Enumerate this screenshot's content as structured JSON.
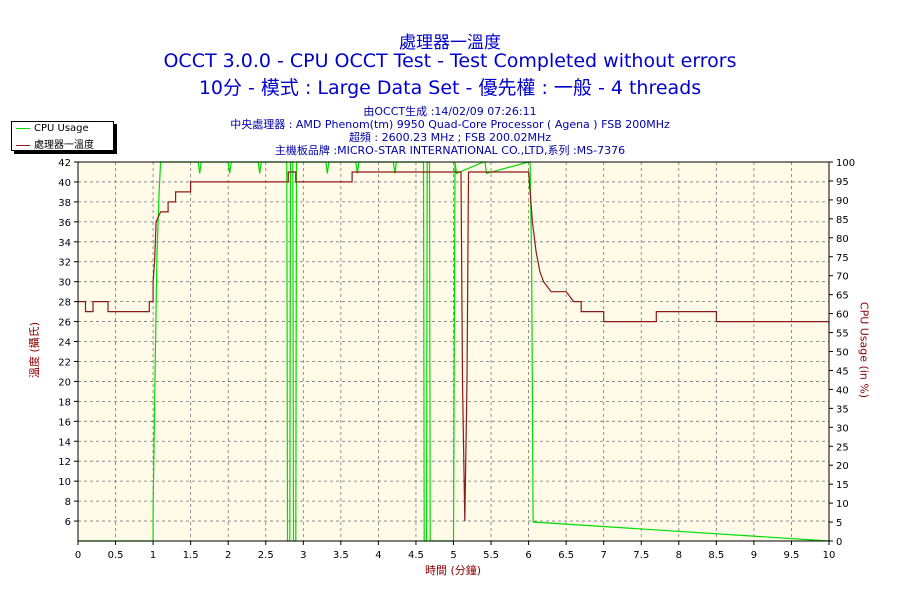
{
  "header": {
    "title": "處理器一溫度",
    "subtitle": "OCCT 3.0.0 - CPU OCCT Test - Test Completed without errors",
    "subtitle2": "10分 - 模式 : Large Data Set - 優先權 : 一般 - 4 threads",
    "info_generated": "由OCCT生成 :14/02/09 07:26:11",
    "info_cpu": "中央處理器 : AMD Phenom(tm) 9950 Quad-Core Processor ( Agena ) FSB 200MHz",
    "info_clock": "超頻 : 2600.23 MHz ; FSB 200.02MHz",
    "info_board": "主機板品牌 :MICRO-STAR INTERNATIONAL CO.,LTD,系列 :MS-7376"
  },
  "chart_data": {
    "type": "line",
    "xlabel": "時間 (分鐘)",
    "ylabel_left": "溫度 (攝氏)",
    "ylabel_right": "CPU Usage (in %)",
    "xlim": [
      0,
      10
    ],
    "ylim_left": [
      4,
      42
    ],
    "ylim_right": [
      0,
      100
    ],
    "x_ticks": [
      "0",
      "0.5",
      "1",
      "1.5",
      "2",
      "2.5",
      "3",
      "3.5",
      "4",
      "4.5",
      "5",
      "5.5",
      "6",
      "6.5",
      "7",
      "7.5",
      "8",
      "8.5",
      "9",
      "9.5",
      "10"
    ],
    "y_ticks_left": [
      "6",
      "8",
      "10",
      "12",
      "14",
      "16",
      "18",
      "20",
      "22",
      "24",
      "26",
      "28",
      "30",
      "32",
      "34",
      "36",
      "38",
      "40",
      "42"
    ],
    "y_ticks_right": [
      "0",
      "5",
      "10",
      "15",
      "20",
      "25",
      "30",
      "35",
      "40",
      "45",
      "50",
      "55",
      "60",
      "65",
      "70",
      "75",
      "80",
      "85",
      "90",
      "95",
      "100"
    ],
    "grid": true,
    "legend_position": "top-left",
    "colors": {
      "cpu_usage": "#00dd00",
      "temperature": "#8b1a1a",
      "plot_bg": "#fffbe8",
      "title": "#0000cc"
    },
    "series": [
      {
        "name": "CPU Usage",
        "axis": "right",
        "x": [
          0,
          1.0,
          1.0,
          1.03,
          1.05,
          1.08,
          1.1,
          1.15,
          1.6,
          1.62,
          1.64,
          2.0,
          2.02,
          2.04,
          2.4,
          2.42,
          2.44,
          2.78,
          2.79,
          2.82,
          2.83,
          2.86,
          2.87,
          2.9,
          2.91,
          3.3,
          3.32,
          3.34,
          3.7,
          3.72,
          3.74,
          4.2,
          4.22,
          4.24,
          4.6,
          4.61,
          4.64,
          4.65,
          4.68,
          4.69,
          5.0,
          5.02,
          5.04,
          5.4,
          5.42,
          5.44,
          6.0,
          6.02,
          6.04,
          6.06,
          10
        ],
        "y": [
          0,
          0,
          8,
          50,
          75,
          92,
          100,
          100,
          100,
          97,
          100,
          100,
          97,
          100,
          100,
          97,
          100,
          100,
          0,
          0,
          100,
          100,
          0,
          0,
          100,
          100,
          97,
          100,
          100,
          97,
          100,
          100,
          97,
          100,
          100,
          0,
          0,
          100,
          100,
          0,
          0,
          100,
          97,
          100,
          100,
          97,
          100,
          100,
          75,
          5,
          0
        ]
      },
      {
        "name": "處理器一溫度",
        "axis": "left",
        "x": [
          0,
          0.1,
          0.1,
          0.2,
          0.2,
          0.4,
          0.4,
          0.5,
          0.5,
          0.95,
          0.95,
          1.0,
          1.0,
          1.02,
          1.04,
          1.1,
          1.12,
          1.2,
          1.2,
          1.3,
          1.3,
          1.5,
          1.5,
          1.7,
          1.7,
          2.0,
          2.0,
          2.5,
          2.5,
          2.8,
          2.8,
          2.9,
          2.9,
          3.0,
          3.0,
          3.4,
          3.4,
          3.65,
          3.65,
          3.95,
          3.95,
          5.1,
          5.12,
          5.15,
          5.18,
          5.2,
          5.25,
          6.0,
          6.02,
          6.05,
          6.1,
          6.15,
          6.2,
          6.3,
          6.4,
          6.5,
          6.6,
          6.7,
          6.7,
          6.8,
          6.8,
          7.0,
          7.0,
          7.7,
          7.7,
          8.5,
          8.5,
          10
        ],
        "y": [
          28,
          28,
          27,
          27,
          28,
          28,
          27,
          27,
          27,
          27,
          28,
          28,
          30,
          32,
          36,
          37,
          37,
          37,
          38,
          38,
          39,
          39,
          40,
          40,
          40,
          40,
          40,
          40,
          40,
          40,
          41,
          41,
          40,
          40,
          40,
          40,
          40,
          40,
          41,
          41,
          41,
          41,
          20,
          6,
          20,
          41,
          41,
          41,
          39,
          36,
          33,
          31,
          30,
          29,
          29,
          29,
          28,
          28,
          27,
          27,
          27,
          27,
          26,
          26,
          27,
          27,
          26,
          26
        ]
      }
    ]
  }
}
